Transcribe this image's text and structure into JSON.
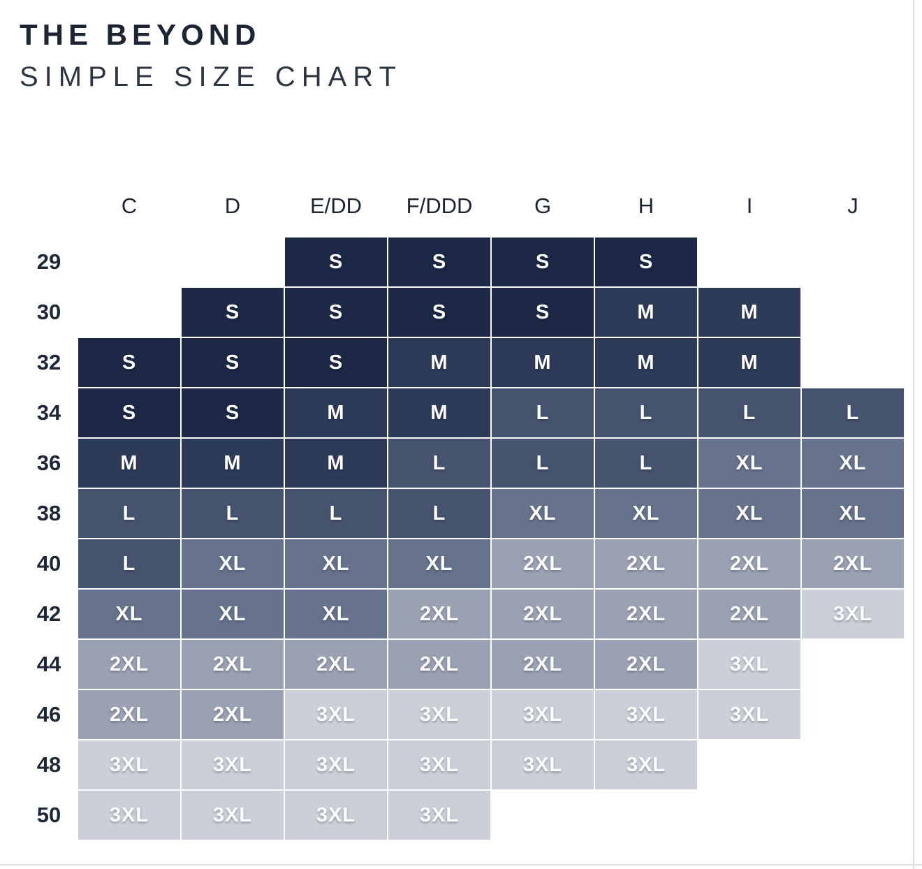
{
  "header": {
    "title": "THE BEYOND",
    "subtitle": "SIMPLE SIZE CHART"
  },
  "chart_data": {
    "type": "table",
    "title": "THE BEYOND SIMPLE SIZE CHART",
    "columns": [
      "C",
      "D",
      "E/DD",
      "F/DDD",
      "G",
      "H",
      "I",
      "J"
    ],
    "rows": [
      {
        "band": "29",
        "cells": [
          null,
          null,
          "S",
          "S",
          "S",
          "S",
          null,
          null
        ]
      },
      {
        "band": "30",
        "cells": [
          null,
          "S",
          "S",
          "S",
          "S",
          "M",
          "M",
          null
        ]
      },
      {
        "band": "32",
        "cells": [
          "S",
          "S",
          "S",
          "M",
          "M",
          "M",
          "M",
          null
        ]
      },
      {
        "band": "34",
        "cells": [
          "S",
          "S",
          "M",
          "M",
          "L",
          "L",
          "L",
          "L"
        ]
      },
      {
        "band": "36",
        "cells": [
          "M",
          "M",
          "M",
          "L",
          "L",
          "L",
          "XL",
          "XL"
        ]
      },
      {
        "band": "38",
        "cells": [
          "L",
          "L",
          "L",
          "L",
          "XL",
          "XL",
          "XL",
          "XL"
        ]
      },
      {
        "band": "40",
        "cells": [
          "L",
          "XL",
          "XL",
          "XL",
          "2XL",
          "2XL",
          "2XL",
          "2XL"
        ]
      },
      {
        "band": "42",
        "cells": [
          "XL",
          "XL",
          "XL",
          "2XL",
          "2XL",
          "2XL",
          "2XL",
          "3XL"
        ]
      },
      {
        "band": "44",
        "cells": [
          "2XL",
          "2XL",
          "2XL",
          "2XL",
          "2XL",
          "2XL",
          "3XL",
          null
        ]
      },
      {
        "band": "46",
        "cells": [
          "2XL",
          "2XL",
          "3XL",
          "3XL",
          "3XL",
          "3XL",
          "3XL",
          null
        ]
      },
      {
        "band": "48",
        "cells": [
          "3XL",
          "3XL",
          "3XL",
          "3XL",
          "3XL",
          "3XL",
          null,
          null
        ]
      },
      {
        "band": "50",
        "cells": [
          "3XL",
          "3XL",
          "3XL",
          "3XL",
          null,
          null,
          null,
          null
        ]
      }
    ],
    "size_colors": {
      "S": "#1c2845",
      "M": "#2d3b59",
      "L": "#46536f",
      "XL": "#67738c",
      "2XL": "#99a1b3",
      "3XL": "#cbcfd8"
    },
    "text_color": "#ffffff"
  }
}
